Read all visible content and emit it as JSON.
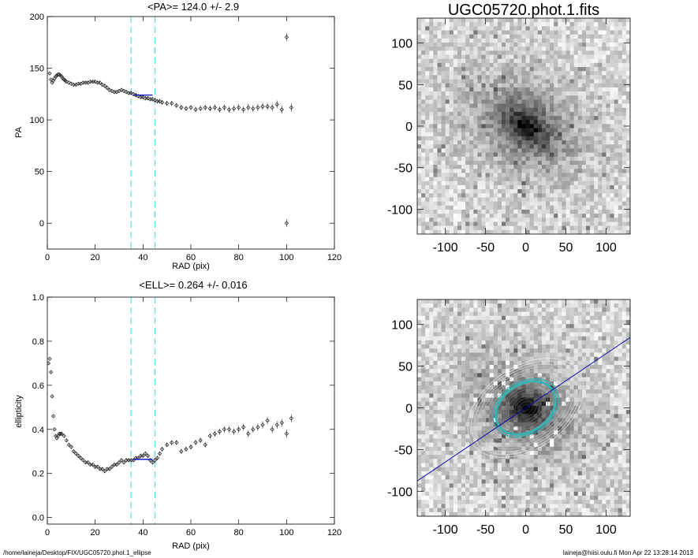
{
  "footer": {
    "path": "/home/laineja/Desktop/FIX/UGC05720.phot.1_ellipse",
    "user_date": "laineja@hiisi.oulu.fi  Mon Apr 22 13:28:14 2013"
  },
  "chart_data": [
    {
      "type": "scatter",
      "title": "<PA>= 124.0 +/-   2.9",
      "xlabel": "RAD (pix)",
      "ylabel": "PA",
      "xlim": [
        0,
        120
      ],
      "ylim": [
        -25,
        200
      ],
      "xticks": [
        0,
        20,
        40,
        60,
        80,
        100,
        120
      ],
      "yticks": [
        0,
        50,
        100,
        150,
        200
      ],
      "vlines": [
        35,
        45
      ],
      "vline_color": "#66dddd",
      "fit_segment": {
        "x": [
          36,
          44
        ],
        "y": [
          124,
          124
        ],
        "color": "#0000cc"
      },
      "points": {
        "x": [
          1,
          1.5,
          2,
          2.5,
          3,
          3.5,
          4,
          4.5,
          5,
          5.5,
          6,
          6.5,
          7,
          7.5,
          8,
          9,
          10,
          11,
          12,
          13,
          14,
          15,
          16,
          17,
          18,
          19,
          20,
          21,
          22,
          23,
          24,
          25,
          26,
          27,
          28,
          29,
          30,
          31,
          32,
          33,
          34,
          35,
          36,
          37,
          38,
          39,
          40,
          41,
          42,
          43,
          44,
          45,
          46,
          47,
          48,
          50,
          52,
          54,
          56,
          58,
          60,
          62,
          64,
          66,
          68,
          70,
          72,
          74,
          76,
          78,
          80,
          82,
          84,
          86,
          88,
          90,
          92,
          94,
          96,
          98,
          100,
          100,
          102
        ],
        "y": [
          145,
          139,
          136,
          138,
          140,
          142,
          143,
          144,
          144,
          143,
          142,
          140,
          139,
          138,
          137,
          136,
          135,
          134,
          134,
          135,
          135,
          136,
          136,
          136,
          137,
          137,
          137,
          136,
          136,
          134,
          133,
          131,
          129,
          128,
          127,
          127,
          128,
          129,
          128,
          127,
          126,
          126,
          125,
          124,
          123,
          122,
          122,
          121,
          121,
          120,
          120,
          119,
          118,
          118,
          117,
          116,
          116,
          114,
          112,
          111,
          112,
          110,
          111,
          112,
          111,
          112,
          110,
          112,
          110,
          111,
          112,
          110,
          112,
          111,
          112,
          113,
          113,
          112,
          115,
          110,
          180,
          0,
          112
        ]
      }
    },
    {
      "type": "scatter",
      "title": "<ELL>= 0.264 +/-  0.016",
      "xlabel": "RAD (pix)",
      "ylabel": "ellipticity",
      "xlim": [
        0,
        120
      ],
      "ylim": [
        -0.03,
        1.0
      ],
      "xticks": [
        0,
        20,
        40,
        60,
        80,
        100,
        120
      ],
      "yticks": [
        0.0,
        0.2,
        0.4,
        0.6,
        0.8,
        1.0
      ],
      "vlines": [
        35,
        45
      ],
      "vline_color": "#66dddd",
      "fit_segment": {
        "x": [
          36,
          44
        ],
        "y": [
          0.264,
          0.264
        ],
        "color": "#0000cc"
      },
      "points": {
        "x": [
          0.5,
          1,
          1.5,
          2,
          2.5,
          3,
          3.5,
          4,
          4.5,
          5,
          5.5,
          6,
          7,
          8,
          9,
          10,
          11,
          12,
          13,
          14,
          15,
          16,
          17,
          18,
          19,
          20,
          21,
          22,
          23,
          24,
          25,
          26,
          27,
          28,
          29,
          30,
          31,
          32,
          33,
          34,
          35,
          36,
          37,
          38,
          39,
          40,
          41,
          42,
          43,
          44,
          45,
          46,
          47,
          48,
          50,
          52,
          54,
          56,
          58,
          60,
          62,
          64,
          66,
          68,
          70,
          72,
          74,
          76,
          78,
          80,
          82,
          84,
          86,
          88,
          90,
          92,
          94,
          96,
          98,
          100,
          102
        ],
        "y": [
          0.7,
          0.72,
          0.66,
          0.55,
          0.46,
          0.4,
          0.37,
          0.36,
          0.37,
          0.38,
          0.38,
          0.38,
          0.37,
          0.35,
          0.33,
          0.32,
          0.3,
          0.29,
          0.28,
          0.27,
          0.26,
          0.25,
          0.25,
          0.24,
          0.24,
          0.23,
          0.23,
          0.22,
          0.22,
          0.21,
          0.22,
          0.22,
          0.23,
          0.24,
          0.24,
          0.25,
          0.26,
          0.25,
          0.26,
          0.26,
          0.26,
          0.26,
          0.27,
          0.27,
          0.28,
          0.28,
          0.29,
          0.28,
          0.26,
          0.25,
          0.26,
          0.27,
          0.29,
          0.31,
          0.33,
          0.34,
          0.34,
          0.3,
          0.31,
          0.32,
          0.34,
          0.35,
          0.33,
          0.37,
          0.38,
          0.39,
          0.4,
          0.4,
          0.39,
          0.4,
          0.41,
          0.38,
          0.4,
          0.41,
          0.42,
          0.44,
          0.4,
          0.42,
          0.43,
          0.38,
          0.45
        ]
      }
    },
    {
      "type": "heatmap",
      "title": "UGC05720.phot.1.fits",
      "xlim": [
        -135,
        130
      ],
      "ylim": [
        -130,
        130
      ],
      "xticks": [
        -100,
        -50,
        0,
        50,
        100
      ],
      "yticks": [
        -100,
        -50,
        0,
        50,
        100
      ],
      "colormap": "grayscale (inverted)"
    },
    {
      "type": "heatmap",
      "title": "",
      "xlim": [
        -135,
        130
      ],
      "ylim": [
        -130,
        130
      ],
      "xticks": [
        -100,
        -50,
        0,
        50,
        100
      ],
      "yticks": [
        -100,
        -50,
        0,
        50,
        100
      ],
      "colormap": "grayscale (inverted) with isophote contours",
      "ellipse_color": "#33b3b3",
      "line_color": "#0000aa",
      "line_pa_deg": 124.0,
      "ellipse_sma": 40,
      "ellipse_ell": 0.264
    }
  ]
}
